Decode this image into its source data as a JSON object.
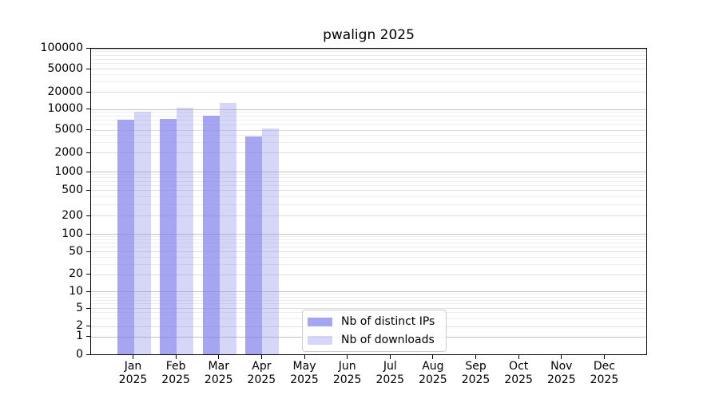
{
  "chart_data": {
    "type": "bar",
    "title": "pwalign 2025",
    "categories": [
      "Jan 2025",
      "Feb 2025",
      "Mar 2025",
      "Apr 2025",
      "May 2025",
      "Jun 2025",
      "Jul 2025",
      "Aug 2025",
      "Sep 2025",
      "Oct 2025",
      "Nov 2025",
      "Dec 2025"
    ],
    "series": [
      {
        "name": "Nb of distinct IPs",
        "color": "rgba(130,130,235,0.72)",
        "values": [
          6850,
          7000,
          7800,
          3700,
          0,
          0,
          0,
          0,
          0,
          0,
          0,
          0
        ]
      },
      {
        "name": "Nb of downloads",
        "color": "rgba(130,130,235,0.33)",
        "values": [
          8900,
          10400,
          12600,
          5100,
          0,
          0,
          0,
          0,
          0,
          0,
          0,
          0
        ]
      }
    ],
    "yscale": "symlog",
    "ylim": [
      0,
      100000
    ],
    "y_ticks": [
      0,
      1,
      2,
      5,
      10,
      20,
      50,
      100,
      200,
      500,
      1000,
      2000,
      5000,
      10000,
      20000,
      50000,
      100000
    ],
    "grid": true,
    "legend_position": "lower center inside plot",
    "colors": {
      "bar_distinct_ips": "#a7a7f1",
      "bar_downloads": "#d9d9f8",
      "gridline_decade": "#c3c3c3",
      "gridline_labeled": "#dddddd",
      "gridline_minor": "#ededed",
      "axis": "#000000"
    }
  }
}
